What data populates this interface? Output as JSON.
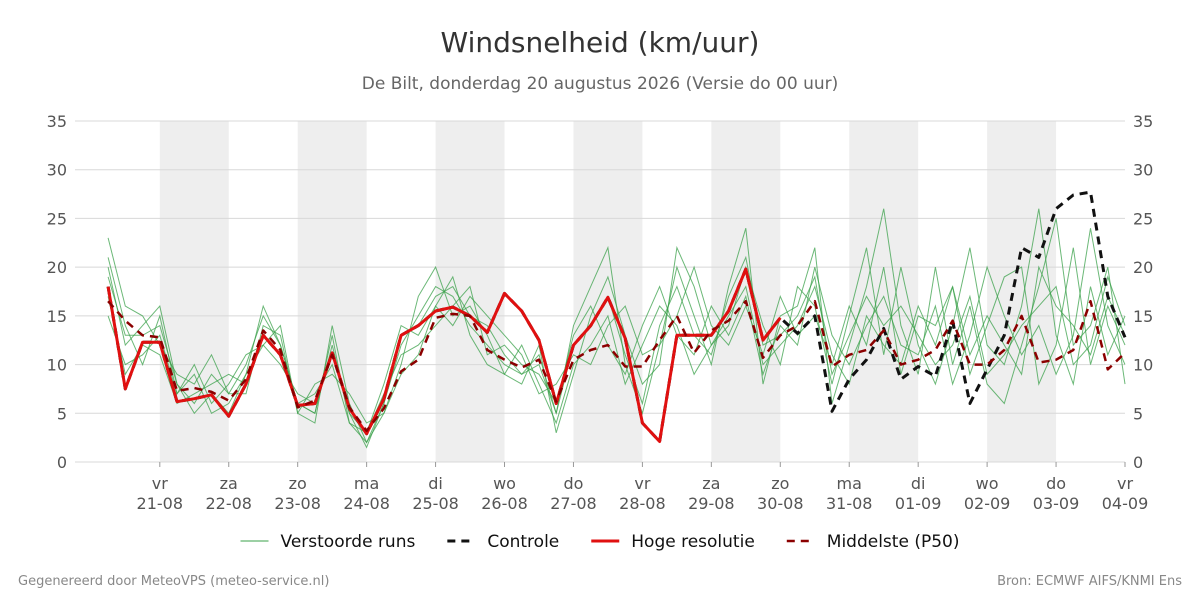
{
  "chart_data": {
    "type": "line",
    "title": "Windsnelheid (km/uur)",
    "subtitle": "De Bilt, donderdag 20 augustus 2026 (Versie do 00 uur)",
    "footer_left": "Gegenereerd door MeteoVPS (meteo-service.nl)",
    "footer_right": "Bron: ECMWF AIFS/KNMI Ens",
    "grid": true,
    "legend": "bottom",
    "ylim": [
      0,
      35
    ],
    "yticks": [
      0,
      5,
      10,
      15,
      20,
      25,
      30,
      35
    ],
    "xlim": [
      -1.23,
      14
    ],
    "xticks": [
      {
        "value": 0,
        "label": [
          "vr",
          "21-08"
        ]
      },
      {
        "value": 1,
        "label": [
          "za",
          "22-08"
        ]
      },
      {
        "value": 2,
        "label": [
          "zo",
          "23-08"
        ]
      },
      {
        "value": 3,
        "label": [
          "ma",
          "24-08"
        ]
      },
      {
        "value": 4,
        "label": [
          "di",
          "25-08"
        ]
      },
      {
        "value": 5,
        "label": [
          "wo",
          "26-08"
        ]
      },
      {
        "value": 6,
        "label": [
          "do",
          "27-08"
        ]
      },
      {
        "value": 7,
        "label": [
          "vr",
          "28-08"
        ]
      },
      {
        "value": 8,
        "label": [
          "za",
          "29-08"
        ]
      },
      {
        "value": 9,
        "label": [
          "zo",
          "30-08"
        ]
      },
      {
        "value": 10,
        "label": [
          "ma",
          "31-08"
        ]
      },
      {
        "value": 11,
        "label": [
          "di",
          "01-09"
        ]
      },
      {
        "value": 12,
        "label": [
          "wo",
          "02-09"
        ]
      },
      {
        "value": 13,
        "label": [
          "do",
          "03-09"
        ]
      },
      {
        "value": 14,
        "label": [
          "vr",
          "04-09"
        ]
      }
    ],
    "x": [
      -0.75,
      -0.5,
      -0.25,
      0,
      0.25,
      0.5,
      0.75,
      1,
      1.25,
      1.5,
      1.75,
      2,
      2.25,
      2.5,
      2.75,
      3,
      3.25,
      3.5,
      3.75,
      4,
      4.25,
      4.5,
      4.75,
      5,
      5.25,
      5.5,
      5.75,
      6,
      6.25,
      6.5,
      6.75,
      7,
      7.25,
      7.5,
      7.75,
      8,
      8.25,
      8.5,
      8.75,
      9,
      9.25,
      9.5,
      9.75,
      10,
      10.25,
      10.5,
      10.75,
      11,
      11.25,
      11.5,
      11.75,
      12,
      12.25,
      12.5,
      12.75,
      13,
      13.25,
      13.5,
      13.75,
      14
    ],
    "ensemble": {
      "name": "Verstoorde runs",
      "color": "#3aa04a",
      "members": [
        [
          20,
          12,
          14,
          16,
          8,
          6,
          9,
          7,
          10,
          15,
          12,
          6,
          5,
          13,
          4,
          2,
          6,
          12,
          15,
          18,
          17,
          14,
          12,
          10,
          9,
          11,
          5,
          14,
          18,
          22,
          10,
          5,
          12,
          20,
          15,
          10,
          18,
          24,
          8,
          15,
          16,
          22,
          6,
          12,
          18,
          26,
          14,
          9,
          20,
          10,
          16,
          8,
          6,
          12,
          18,
          25,
          12,
          14,
          20,
          8
        ],
        [
          15,
          10,
          11,
          13,
          7,
          9,
          5,
          6,
          9,
          12,
          10,
          7,
          6,
          11,
          5,
          3,
          8,
          14,
          13,
          16,
          19,
          13,
          10,
          9,
          12,
          8,
          4,
          10,
          12,
          15,
          8,
          12,
          16,
          14,
          9,
          12,
          15,
          18,
          10,
          12,
          14,
          18,
          11,
          8,
          15,
          12,
          10,
          16,
          12,
          18,
          9,
          14,
          19,
          20,
          8,
          12,
          22,
          10,
          16,
          12
        ],
        [
          23,
          16,
          15,
          12,
          9,
          8,
          11,
          7,
          7,
          14,
          13,
          5,
          4,
          14,
          6,
          2,
          5,
          10,
          17,
          20,
          15,
          16,
          13,
          9,
          8,
          12,
          3,
          9,
          15,
          19,
          13,
          8,
          10,
          22,
          18,
          12,
          14,
          20,
          14,
          10,
          18,
          16,
          8,
          15,
          22,
          11,
          20,
          12,
          8,
          14,
          22,
          12,
          10,
          16,
          26,
          13,
          8,
          18,
          11,
          15
        ],
        [
          17,
          9,
          12,
          11,
          6,
          7,
          8,
          9,
          8,
          13,
          11,
          6,
          7,
          10,
          4,
          3,
          7,
          11,
          12,
          14,
          16,
          18,
          11,
          12,
          10,
          9,
          6,
          13,
          16,
          12,
          9,
          14,
          18,
          13,
          11,
          16,
          13,
          17,
          9,
          14,
          12,
          20,
          13,
          10,
          14,
          17,
          12,
          11,
          16,
          8,
          13,
          20,
          15,
          11,
          14,
          9,
          13,
          24,
          14,
          10
        ],
        [
          19,
          13,
          13,
          14,
          8,
          5,
          7,
          5,
          9,
          16,
          12,
          6,
          5,
          12,
          5,
          1.5,
          6,
          13,
          14,
          17,
          18,
          15,
          14,
          11,
          9,
          10,
          5,
          12,
          14,
          17,
          11,
          6,
          14,
          18,
          13,
          11,
          17,
          21,
          12,
          13,
          15,
          19,
          9,
          13,
          17,
          14,
          16,
          13,
          10,
          12,
          17,
          9,
          11,
          14,
          16,
          18,
          10,
          12,
          19,
          14
        ],
        [
          21,
          14,
          10,
          15,
          7,
          10,
          6,
          8,
          11,
          12,
          14,
          5,
          8,
          9,
          7,
          4,
          5,
          9,
          11,
          16,
          14,
          17,
          15,
          13,
          11,
          7,
          8,
          11,
          10,
          14,
          16,
          11,
          12,
          15,
          20,
          14,
          12,
          16,
          11,
          17,
          13,
          15,
          10,
          16,
          12,
          20,
          9,
          15,
          14,
          18,
          11,
          15,
          12,
          9,
          20,
          16,
          14,
          11,
          17,
          13
        ]
      ]
    },
    "series": [
      {
        "name": "Controle",
        "color": "#111111",
        "dashed": true,
        "width": 3,
        "values": [
          18,
          7.5,
          12.3,
          12.3,
          6.2,
          6.5,
          6.9,
          4.7,
          8,
          13,
          11,
          5.8,
          6,
          11.2,
          5.5,
          2.9,
          6.5,
          13,
          14,
          15.5,
          15.9,
          15,
          13.3,
          17.3,
          15.5,
          12.5,
          6,
          12,
          14,
          16.9,
          12.7,
          4,
          2.1,
          13,
          13,
          13,
          15.5,
          19.8,
          12.5,
          14.8,
          13.2,
          15,
          5.2,
          8.5,
          10.5,
          13.7,
          8.5,
          9.8,
          8.8,
          14.5,
          6,
          9.5,
          13,
          22,
          21,
          26,
          27.4,
          27.7,
          17,
          12.8
        ]
      },
      {
        "name": "Hoge resolutie",
        "color": "#e01010",
        "dashed": false,
        "width": 3,
        "values": [
          18,
          7.5,
          12.3,
          12.3,
          6.2,
          6.5,
          6.9,
          4.7,
          8,
          13,
          11,
          5.8,
          6,
          11.2,
          5.5,
          2.9,
          6.5,
          13,
          14,
          15.5,
          15.9,
          15,
          13.3,
          17.3,
          15.5,
          12.5,
          6,
          12,
          14,
          16.9,
          12.7,
          4,
          2.1,
          13,
          13,
          13,
          15.5,
          19.8,
          12.5,
          14.8,
          null,
          null,
          null,
          null,
          null,
          null,
          null,
          null,
          null,
          null,
          null,
          null,
          null,
          null,
          null,
          null,
          null,
          null,
          null,
          null
        ]
      },
      {
        "name": "Middelste (P50)",
        "color": "#8b0000",
        "dashed": true,
        "width": 2.5,
        "values": [
          16.5,
          14.5,
          13,
          12.8,
          7.3,
          7.6,
          7.2,
          6.3,
          8.5,
          13.5,
          11.5,
          5.6,
          6.3,
          11,
          5.6,
          3.2,
          5.5,
          9.3,
          10.5,
          14.8,
          15.2,
          15,
          11.5,
          10.5,
          9.7,
          10.5,
          6.2,
          10.5,
          11.5,
          12,
          9.8,
          9.8,
          12.5,
          15,
          11.2,
          13.5,
          14.5,
          16.5,
          10.7,
          13,
          14,
          16.5,
          9.8,
          11,
          11.5,
          13.5,
          10,
          10.5,
          11.5,
          14.5,
          10,
          10,
          11.5,
          15,
          10.2,
          10.5,
          11.5,
          16.5,
          9.5,
          11.2
        ]
      }
    ]
  }
}
